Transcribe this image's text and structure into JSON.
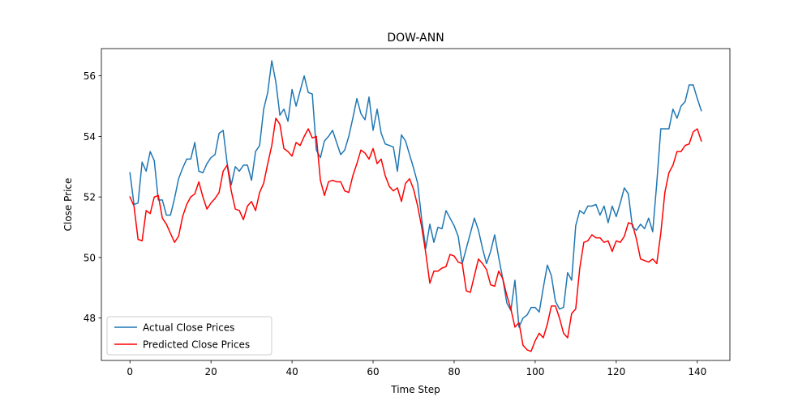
{
  "chart_data": {
    "type": "line",
    "title": "DOW-ANN",
    "xlabel": "Time Step",
    "ylabel": "Close Price",
    "xlim": [
      -7.05,
      148.05
    ],
    "ylim": [
      46.6,
      56.9
    ],
    "xticks": [
      0,
      20,
      40,
      60,
      80,
      100,
      120,
      140
    ],
    "yticks": [
      48,
      50,
      52,
      54,
      56
    ],
    "grid": false,
    "legend_position": "lower-left",
    "series": [
      {
        "name": "Actual Close Prices",
        "color": "#1f77b4",
        "values": [
          52.8,
          51.75,
          51.8,
          53.15,
          52.85,
          53.5,
          53.2,
          51.9,
          51.9,
          51.4,
          51.4,
          51.95,
          52.6,
          52.95,
          53.25,
          53.25,
          53.8,
          52.85,
          52.8,
          53.1,
          53.3,
          53.4,
          54.1,
          54.2,
          53.1,
          52.4,
          53.0,
          52.85,
          53.05,
          53.05,
          52.55,
          53.5,
          53.7,
          54.9,
          55.45,
          56.5,
          55.8,
          54.7,
          54.9,
          54.5,
          55.55,
          55.0,
          55.5,
          56.0,
          55.45,
          55.4,
          53.55,
          53.3,
          53.85,
          54.0,
          54.2,
          53.8,
          53.4,
          53.55,
          54.0,
          54.6,
          55.25,
          54.75,
          54.55,
          55.3,
          54.2,
          54.9,
          54.1,
          53.75,
          53.7,
          53.65,
          52.85,
          54.05,
          53.85,
          53.4,
          52.95,
          52.45,
          51.25,
          50.3,
          51.1,
          50.5,
          51.0,
          50.95,
          51.55,
          51.3,
          51.05,
          50.7,
          49.8,
          50.3,
          50.8,
          51.3,
          50.9,
          50.3,
          49.8,
          50.2,
          50.75,
          50.0,
          49.3,
          48.5,
          48.25,
          49.25,
          47.7,
          48.0,
          48.1,
          48.35,
          48.35,
          48.2,
          49.0,
          49.75,
          49.4,
          48.55,
          48.3,
          48.35,
          49.5,
          49.25,
          51.05,
          51.55,
          51.45,
          51.7,
          51.7,
          51.75,
          51.4,
          51.7,
          51.15,
          51.7,
          51.35,
          51.8,
          52.3,
          52.1,
          51.0,
          50.9,
          51.1,
          50.95,
          51.3,
          50.85,
          52.45,
          54.25,
          54.25,
          54.25,
          54.9,
          54.6,
          55.0,
          55.15,
          55.7,
          55.7,
          55.25,
          54.85
        ]
      },
      {
        "name": "Predicted Close Prices",
        "color": "#ff0000",
        "values": [
          52.0,
          51.7,
          50.6,
          50.55,
          51.55,
          51.45,
          52.0,
          52.05,
          51.3,
          51.1,
          50.8,
          50.5,
          50.7,
          51.35,
          51.75,
          52.0,
          52.1,
          52.5,
          52.0,
          51.6,
          51.8,
          51.95,
          52.15,
          52.85,
          53.05,
          52.2,
          51.6,
          51.55,
          51.25,
          51.7,
          51.85,
          51.55,
          52.15,
          52.45,
          53.1,
          53.7,
          54.6,
          54.4,
          53.6,
          53.5,
          53.35,
          53.8,
          53.7,
          54.0,
          54.25,
          53.95,
          54.0,
          52.55,
          52.05,
          52.5,
          52.55,
          52.5,
          52.5,
          52.2,
          52.15,
          52.7,
          53.1,
          53.55,
          53.45,
          53.25,
          53.6,
          53.1,
          53.25,
          52.7,
          52.35,
          52.2,
          52.3,
          51.85,
          52.45,
          52.6,
          52.25,
          51.7,
          51.0,
          50.15,
          49.15,
          49.55,
          49.55,
          49.65,
          49.7,
          50.1,
          50.05,
          49.85,
          49.8,
          48.9,
          48.85,
          49.4,
          49.95,
          49.8,
          49.6,
          49.1,
          49.05,
          49.55,
          49.3,
          48.75,
          48.3,
          47.7,
          47.85,
          47.1,
          46.95,
          46.9,
          47.25,
          47.5,
          47.35,
          47.8,
          48.4,
          48.4,
          48.0,
          47.5,
          47.35,
          48.15,
          48.3,
          49.65,
          50.5,
          50.55,
          50.75,
          50.65,
          50.65,
          50.5,
          50.55,
          50.2,
          50.55,
          50.5,
          50.7,
          51.15,
          51.1,
          50.6,
          49.95,
          49.9,
          49.85,
          49.95,
          49.8,
          50.8,
          52.15,
          52.8,
          53.05,
          53.5,
          53.5,
          53.7,
          53.75,
          54.15,
          54.25,
          53.85
        ]
      }
    ]
  }
}
